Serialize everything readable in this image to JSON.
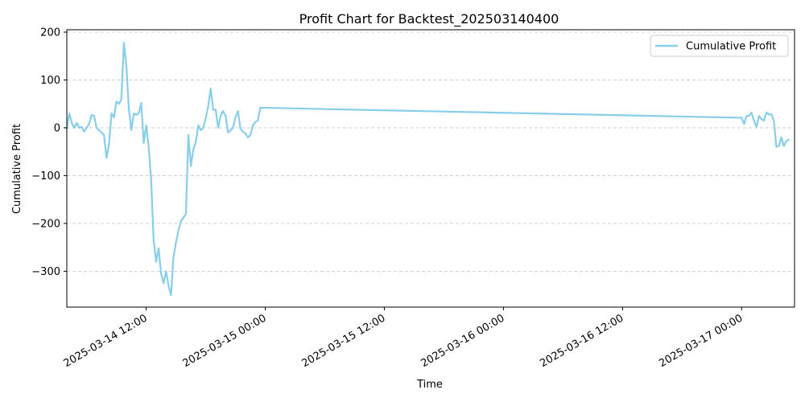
{
  "chart_data": {
    "type": "line",
    "title": "Profit Chart for Backtest_202503140400",
    "xlabel": "Time",
    "ylabel": "Cumulative Profit",
    "grid": "horizontal dashed",
    "legend_position": "top-right",
    "xlim": [
      "2025-03-14 04:00",
      "2025-03-17 05:20"
    ],
    "ylim": [
      -375,
      205
    ],
    "x_ticks": [
      {
        "value": "2025-03-14 12:00",
        "label": "2025-03-14 12:00"
      },
      {
        "value": "2025-03-15 00:00",
        "label": "2025-03-15 00:00"
      },
      {
        "value": "2025-03-15 12:00",
        "label": "2025-03-15 12:00"
      },
      {
        "value": "2025-03-16 00:00",
        "label": "2025-03-16 00:00"
      },
      {
        "value": "2025-03-16 12:00",
        "label": "2025-03-16 12:00"
      },
      {
        "value": "2025-03-17 00:00",
        "label": "2025-03-17 00:00"
      }
    ],
    "y_ticks": [
      {
        "value": 200,
        "label": "200"
      },
      {
        "value": 100,
        "label": "100"
      },
      {
        "value": 0,
        "label": "0"
      },
      {
        "value": -100,
        "label": "−100"
      },
      {
        "value": -200,
        "label": "−200"
      },
      {
        "value": -300,
        "label": "−300"
      }
    ],
    "series": [
      {
        "name": "Cumulative Profit",
        "color": "#87ceeb",
        "points": [
          [
            "2025-03-14 04:00",
            -2
          ],
          [
            "2025-03-14 04:15",
            30
          ],
          [
            "2025-03-14 04:30",
            10
          ],
          [
            "2025-03-14 04:45",
            0
          ],
          [
            "2025-03-14 05:00",
            10
          ],
          [
            "2025-03-14 05:15",
            0
          ],
          [
            "2025-03-14 05:30",
            2
          ],
          [
            "2025-03-14 05:45",
            -8
          ],
          [
            "2025-03-14 06:00",
            0
          ],
          [
            "2025-03-14 06:15",
            8
          ],
          [
            "2025-03-14 06:30",
            27
          ],
          [
            "2025-03-14 06:45",
            25
          ],
          [
            "2025-03-14 07:00",
            0
          ],
          [
            "2025-03-14 07:15",
            -5
          ],
          [
            "2025-03-14 07:30",
            -10
          ],
          [
            "2025-03-14 07:45",
            -15
          ],
          [
            "2025-03-14 08:00",
            -63
          ],
          [
            "2025-03-14 08:15",
            -35
          ],
          [
            "2025-03-14 08:30",
            30
          ],
          [
            "2025-03-14 08:45",
            22
          ],
          [
            "2025-03-14 09:00",
            55
          ],
          [
            "2025-03-14 09:15",
            50
          ],
          [
            "2025-03-14 09:30",
            60
          ],
          [
            "2025-03-14 09:45",
            178
          ],
          [
            "2025-03-14 10:00",
            130
          ],
          [
            "2025-03-14 10:15",
            40
          ],
          [
            "2025-03-14 10:30",
            -5
          ],
          [
            "2025-03-14 10:45",
            30
          ],
          [
            "2025-03-14 11:00",
            27
          ],
          [
            "2025-03-14 11:15",
            30
          ],
          [
            "2025-03-14 11:30",
            52
          ],
          [
            "2025-03-14 11:45",
            -32
          ],
          [
            "2025-03-14 12:00",
            5
          ],
          [
            "2025-03-14 12:15",
            -40
          ],
          [
            "2025-03-14 12:30",
            -110
          ],
          [
            "2025-03-14 12:45",
            -235
          ],
          [
            "2025-03-14 13:00",
            -280
          ],
          [
            "2025-03-14 13:15",
            -252
          ],
          [
            "2025-03-14 13:30",
            -305
          ],
          [
            "2025-03-14 13:45",
            -325
          ],
          [
            "2025-03-14 14:00",
            -300
          ],
          [
            "2025-03-14 14:15",
            -330
          ],
          [
            "2025-03-14 14:30",
            -350
          ],
          [
            "2025-03-14 14:45",
            -270
          ],
          [
            "2025-03-14 15:00",
            -240
          ],
          [
            "2025-03-14 15:15",
            -215
          ],
          [
            "2025-03-14 15:30",
            -195
          ],
          [
            "2025-03-14 15:45",
            -188
          ],
          [
            "2025-03-14 16:00",
            -180
          ],
          [
            "2025-03-14 16:15",
            -15
          ],
          [
            "2025-03-14 16:30",
            -80
          ],
          [
            "2025-03-14 16:45",
            -45
          ],
          [
            "2025-03-14 17:00",
            -30
          ],
          [
            "2025-03-14 17:15",
            5
          ],
          [
            "2025-03-14 17:30",
            -5
          ],
          [
            "2025-03-14 17:45",
            0
          ],
          [
            "2025-03-14 18:00",
            20
          ],
          [
            "2025-03-14 18:15",
            45
          ],
          [
            "2025-03-14 18:30",
            82
          ],
          [
            "2025-03-14 18:45",
            38
          ],
          [
            "2025-03-14 19:00",
            38
          ],
          [
            "2025-03-14 19:15",
            0
          ],
          [
            "2025-03-14 19:30",
            25
          ],
          [
            "2025-03-14 19:45",
            35
          ],
          [
            "2025-03-14 20:00",
            25
          ],
          [
            "2025-03-14 20:15",
            -10
          ],
          [
            "2025-03-14 20:30",
            -5
          ],
          [
            "2025-03-14 20:45",
            0
          ],
          [
            "2025-03-14 21:00",
            22
          ],
          [
            "2025-03-14 21:15",
            35
          ],
          [
            "2025-03-14 21:30",
            -2
          ],
          [
            "2025-03-14 21:45",
            -8
          ],
          [
            "2025-03-14 22:00",
            -12
          ],
          [
            "2025-03-14 22:15",
            -20
          ],
          [
            "2025-03-14 22:30",
            -15
          ],
          [
            "2025-03-14 22:45",
            5
          ],
          [
            "2025-03-14 23:00",
            12
          ],
          [
            "2025-03-14 23:15",
            15
          ],
          [
            "2025-03-14 23:30",
            42
          ],
          [
            "2025-03-17 00:00",
            21
          ],
          [
            "2025-03-17 00:15",
            8
          ],
          [
            "2025-03-17 00:30",
            25
          ],
          [
            "2025-03-17 00:45",
            25
          ],
          [
            "2025-03-17 01:00",
            32
          ],
          [
            "2025-03-17 01:15",
            15
          ],
          [
            "2025-03-17 01:30",
            2
          ],
          [
            "2025-03-17 01:45",
            25
          ],
          [
            "2025-03-17 02:00",
            18
          ],
          [
            "2025-03-17 02:15",
            15
          ],
          [
            "2025-03-17 02:30",
            32
          ],
          [
            "2025-03-17 02:45",
            28
          ],
          [
            "2025-03-17 03:00",
            28
          ],
          [
            "2025-03-17 03:15",
            15
          ],
          [
            "2025-03-17 03:30",
            -40
          ],
          [
            "2025-03-17 03:45",
            -38
          ],
          [
            "2025-03-17 04:00",
            -20
          ],
          [
            "2025-03-17 04:15",
            -38
          ],
          [
            "2025-03-17 04:30",
            -28
          ],
          [
            "2025-03-17 04:45",
            -25
          ]
        ]
      }
    ]
  }
}
